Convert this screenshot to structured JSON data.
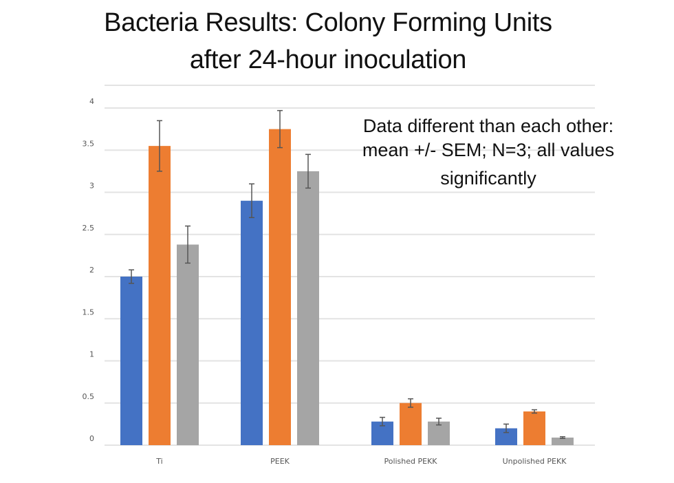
{
  "title_lines": [
    "Bacteria Results: Colony Forming Units",
    "after 24-hour inoculation"
  ],
  "annotation_lines": [
    "Data different than each other:",
    "mean +/- SEM; N=3; all values",
    "significantly"
  ],
  "chart_data": {
    "type": "bar",
    "categories": [
      "Ti",
      "PEEK",
      "Polished PEKK",
      "Unpolished PEKK"
    ],
    "series": [
      {
        "color": "#4472c4",
        "values": [
          2.0,
          2.9,
          0.28,
          0.2
        ],
        "errors": [
          0.08,
          0.2,
          0.05,
          0.05
        ]
      },
      {
        "color": "#ed7d31",
        "values": [
          3.55,
          3.75,
          0.5,
          0.4
        ],
        "errors": [
          0.3,
          0.22,
          0.05,
          0.02
        ]
      },
      {
        "color": "#a5a5a5",
        "values": [
          2.38,
          3.25,
          0.28,
          0.09
        ],
        "errors": [
          0.22,
          0.2,
          0.04,
          0.01
        ]
      }
    ],
    "y_ticks": [
      "0",
      "0.5",
      "1",
      "1.5",
      "2",
      "2.5",
      "3",
      "3.5",
      "4"
    ],
    "ylim": [
      0,
      4.1
    ],
    "grid": true
  }
}
